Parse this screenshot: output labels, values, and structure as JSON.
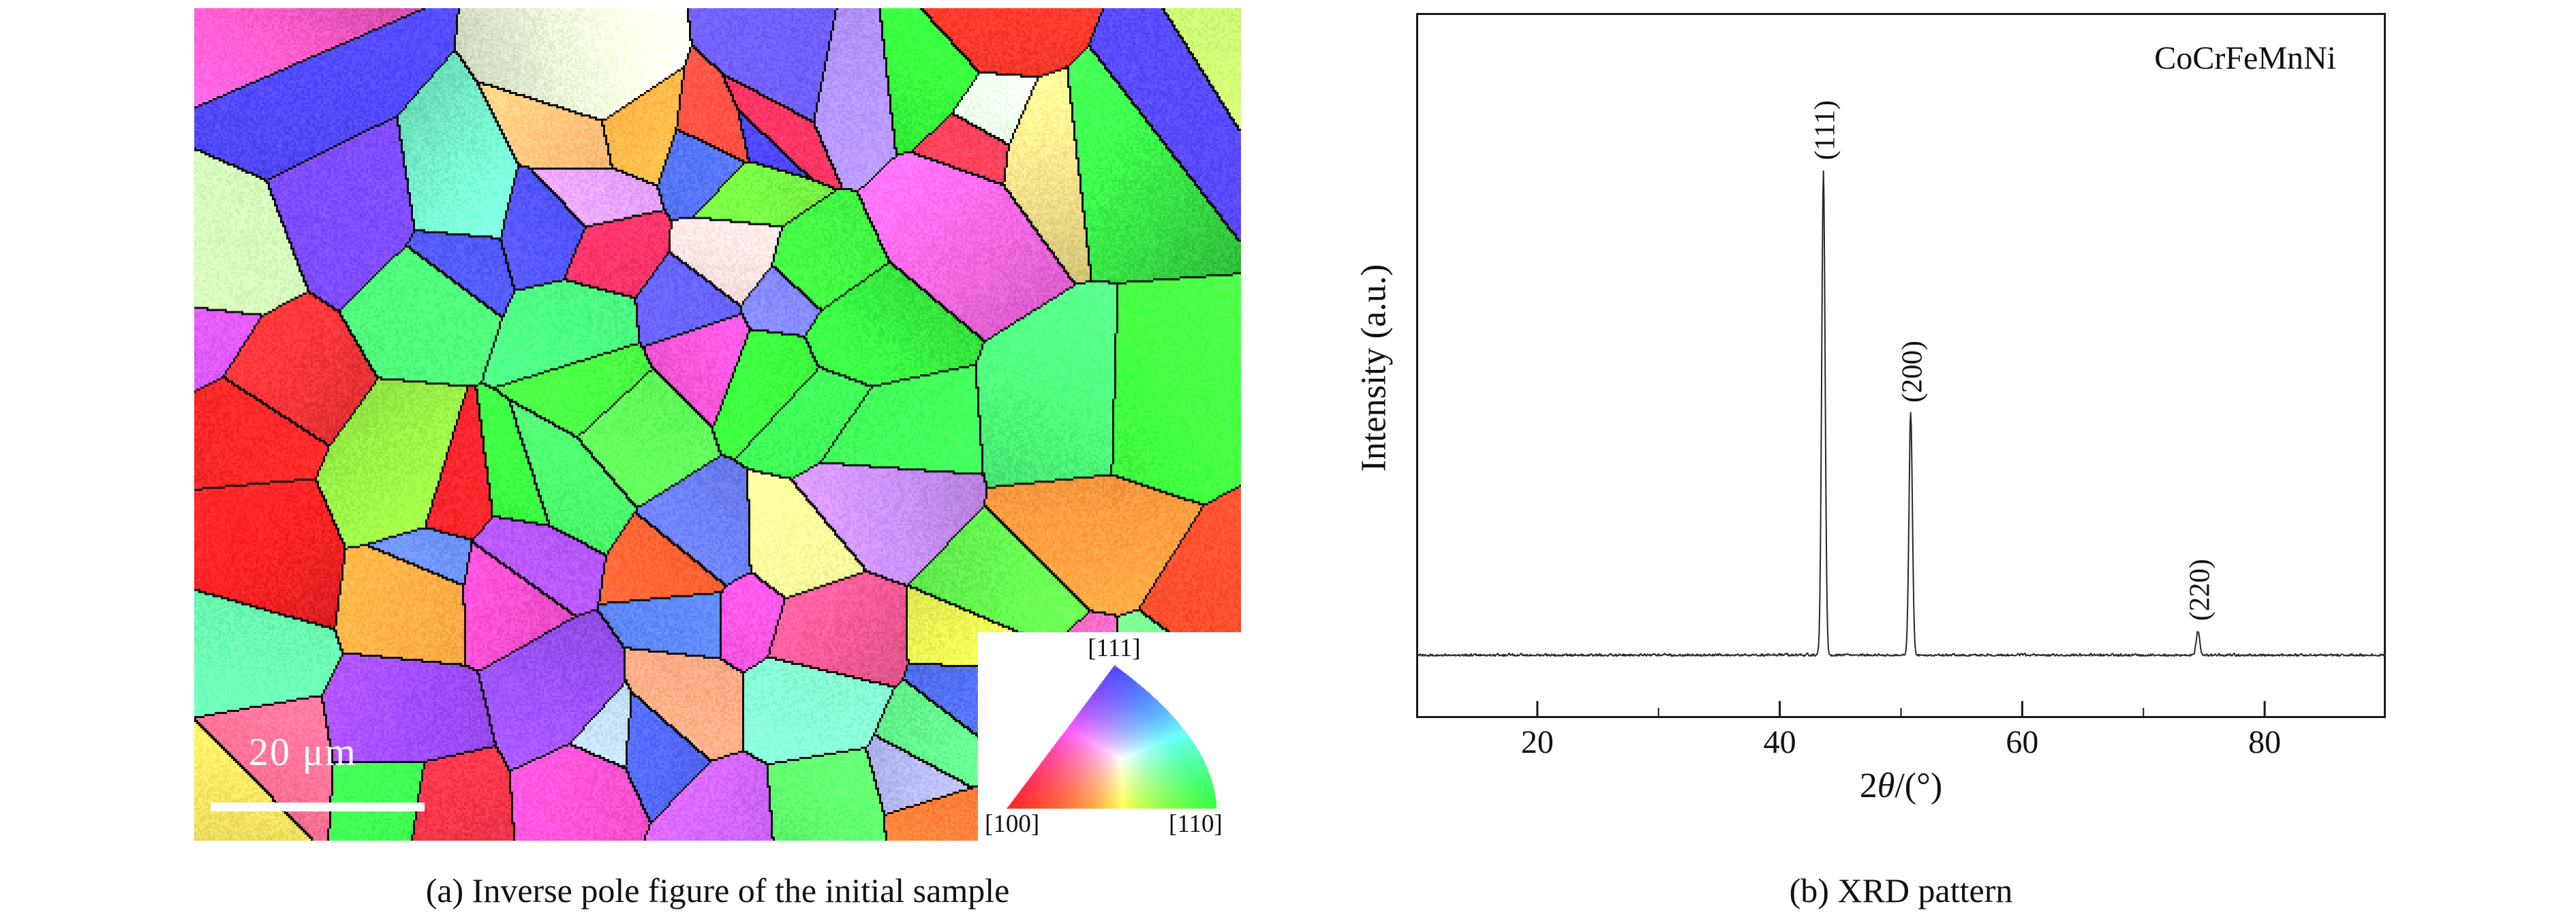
{
  "panel_a": {
    "caption": "(a) Inverse pole figure of the initial sample",
    "scale_bar_label": "20 μm",
    "ipf_key": {
      "label_111": "[111]",
      "label_100": "[100]",
      "label_110": "[110]"
    }
  },
  "panel_b": {
    "caption": "(b) XRD pattern",
    "annotation": "CoCrFeMnNi",
    "ylabel": "Intensity (a.u.)",
    "xlabel_pre": "2",
    "xlabel_italic": "θ",
    "xlabel_post": "/(°)"
  },
  "chart_data": {
    "type": "line",
    "title": "",
    "xlabel": "2θ/(°)",
    "ylabel": "Intensity (a.u.)",
    "xlim": [
      10,
      90
    ],
    "xticks": [
      20,
      40,
      60,
      80
    ],
    "grid": false,
    "legend": false,
    "annotation": "CoCrFeMnNi",
    "series": [
      {
        "name": "CoCrFeMnNi XRD intensity",
        "baseline_relative_intensity": 0.02,
        "peaks": [
          {
            "two_theta": 43.6,
            "hkl": "(111)",
            "relative_intensity": 1.0
          },
          {
            "two_theta": 50.8,
            "hkl": "(200)",
            "relative_intensity": 0.5
          },
          {
            "two_theta": 74.5,
            "hkl": "(220)",
            "relative_intensity": 0.05
          }
        ]
      }
    ]
  }
}
